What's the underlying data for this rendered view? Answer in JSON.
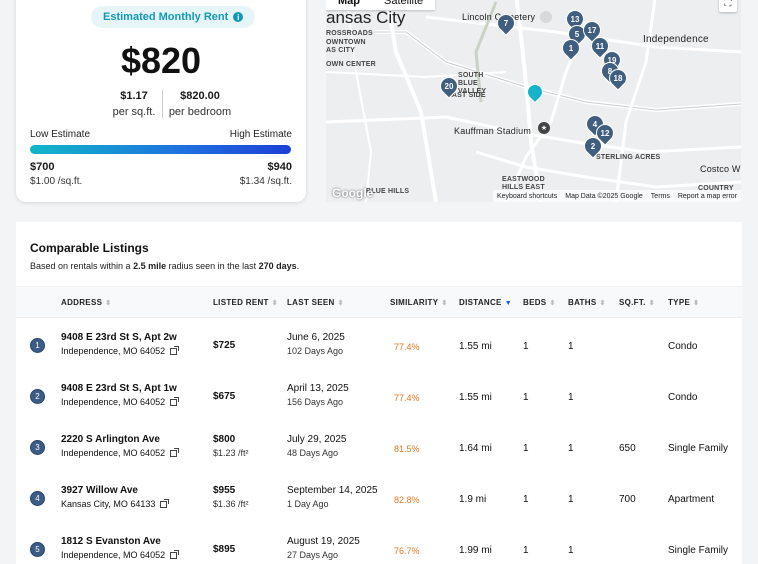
{
  "estimate": {
    "badge": "Estimated Monthly Rent",
    "rent": "$820",
    "per_sqft_value": "$1.17",
    "per_sqft_label": "per sq.ft.",
    "per_bedroom_value": "$820.00",
    "per_bedroom_label": "per bedroom",
    "low_label": "Low Estimate",
    "high_label": "High Estimate",
    "low_value": "$700",
    "high_value": "$940",
    "low_sqft": "$1.00 /sq.ft.",
    "high_sqft": "$1.34 /sq.ft.",
    "position_fraction": 1.0
  },
  "map": {
    "tabs": [
      "Map",
      "Satellite"
    ],
    "labels": {
      "city": "ansas City",
      "cemetery": "Lincoln Cemetery",
      "independence": "Independence",
      "rossroads": "ROSSROADS",
      "owntown": "OWNTOWN",
      "sas_city": "AS CITY",
      "own_center": "OWN CENTER",
      "south_blue_valley": "SOUTH BLUE VALLEY",
      "east_side": "EAST SIDE",
      "kauffman": "Kauffman Stadium",
      "sterling_acres": "STERLING ACRES",
      "eastwood_hills": "EASTWOOD HILLS EAST",
      "blue_hills": "BLUE HILLS",
      "costco": "Costco W",
      "country": "COUNTRY"
    },
    "pins": [
      "7",
      "13",
      "5",
      "17",
      "1",
      "11",
      "19",
      "8",
      "18",
      "20",
      "4",
      "12",
      "2"
    ],
    "footer": [
      "Keyboard shortcuts",
      "Map Data ©2025 Google",
      "Terms",
      "Report a map error"
    ],
    "google": "Google",
    "colors": {
      "pin": "#3f5e80",
      "target_pin": "#17b4c9"
    }
  },
  "listings": {
    "title": "Comparable Listings",
    "subtitle_prefix": "Based on rentals within a ",
    "radius": "2.5 mile",
    "subtitle_mid": " radius seen in the last ",
    "days": "270 days",
    "subtitle_suffix": ".",
    "columns": [
      "ADDRESS",
      "LISTED RENT",
      "LAST SEEN",
      "SIMILARITY",
      "DISTANCE",
      "BEDS",
      "BATHS",
      "SQ.FT.",
      "TYPE"
    ],
    "rows": [
      {
        "n": "1",
        "addr1": "9408 E 23rd St S, Apt 2w",
        "addr2": "Independence, MO 64052",
        "rent": "$725",
        "rent_sqft": "",
        "seen": "June 6, 2025",
        "ago": "102 Days Ago",
        "sim": "77.4%",
        "dist": "1.55 mi",
        "beds": "1",
        "baths": "1",
        "sqft": "",
        "type": "Condo"
      },
      {
        "n": "2",
        "addr1": "9408 E 23rd St S, Apt 1w",
        "addr2": "Independence, MO 64052",
        "rent": "$675",
        "rent_sqft": "",
        "seen": "April 13, 2025",
        "ago": "156 Days Ago",
        "sim": "77.4%",
        "dist": "1.55 mi",
        "beds": "1",
        "baths": "1",
        "sqft": "",
        "type": "Condo"
      },
      {
        "n": "3",
        "addr1": "2220 S Arlington Ave",
        "addr2": "Independence, MO 64052",
        "rent": "$800",
        "rent_sqft": "$1.23 /ft²",
        "seen": "July 29, 2025",
        "ago": "48 Days Ago",
        "sim": "81.5%",
        "dist": "1.64 mi",
        "beds": "1",
        "baths": "1",
        "sqft": "650",
        "type": "Single Family"
      },
      {
        "n": "4",
        "addr1": "3927 Willow Ave",
        "addr2": "Kansas City, MO 64133",
        "rent": "$955",
        "rent_sqft": "$1.36 /ft²",
        "seen": "September 14, 2025",
        "ago": "1 Day Ago",
        "sim": "82.8%",
        "dist": "1.9 mi",
        "beds": "1",
        "baths": "1",
        "sqft": "700",
        "type": "Apartment"
      },
      {
        "n": "5",
        "addr1": "1812 S Evanston Ave",
        "addr2": "Independence, MO 64052",
        "rent": "$895",
        "rent_sqft": "",
        "seen": "August 19, 2025",
        "ago": "27 Days Ago",
        "sim": "76.7%",
        "dist": "1.99 mi",
        "beds": "1",
        "baths": "1",
        "sqft": "",
        "type": "Single Family"
      }
    ]
  }
}
